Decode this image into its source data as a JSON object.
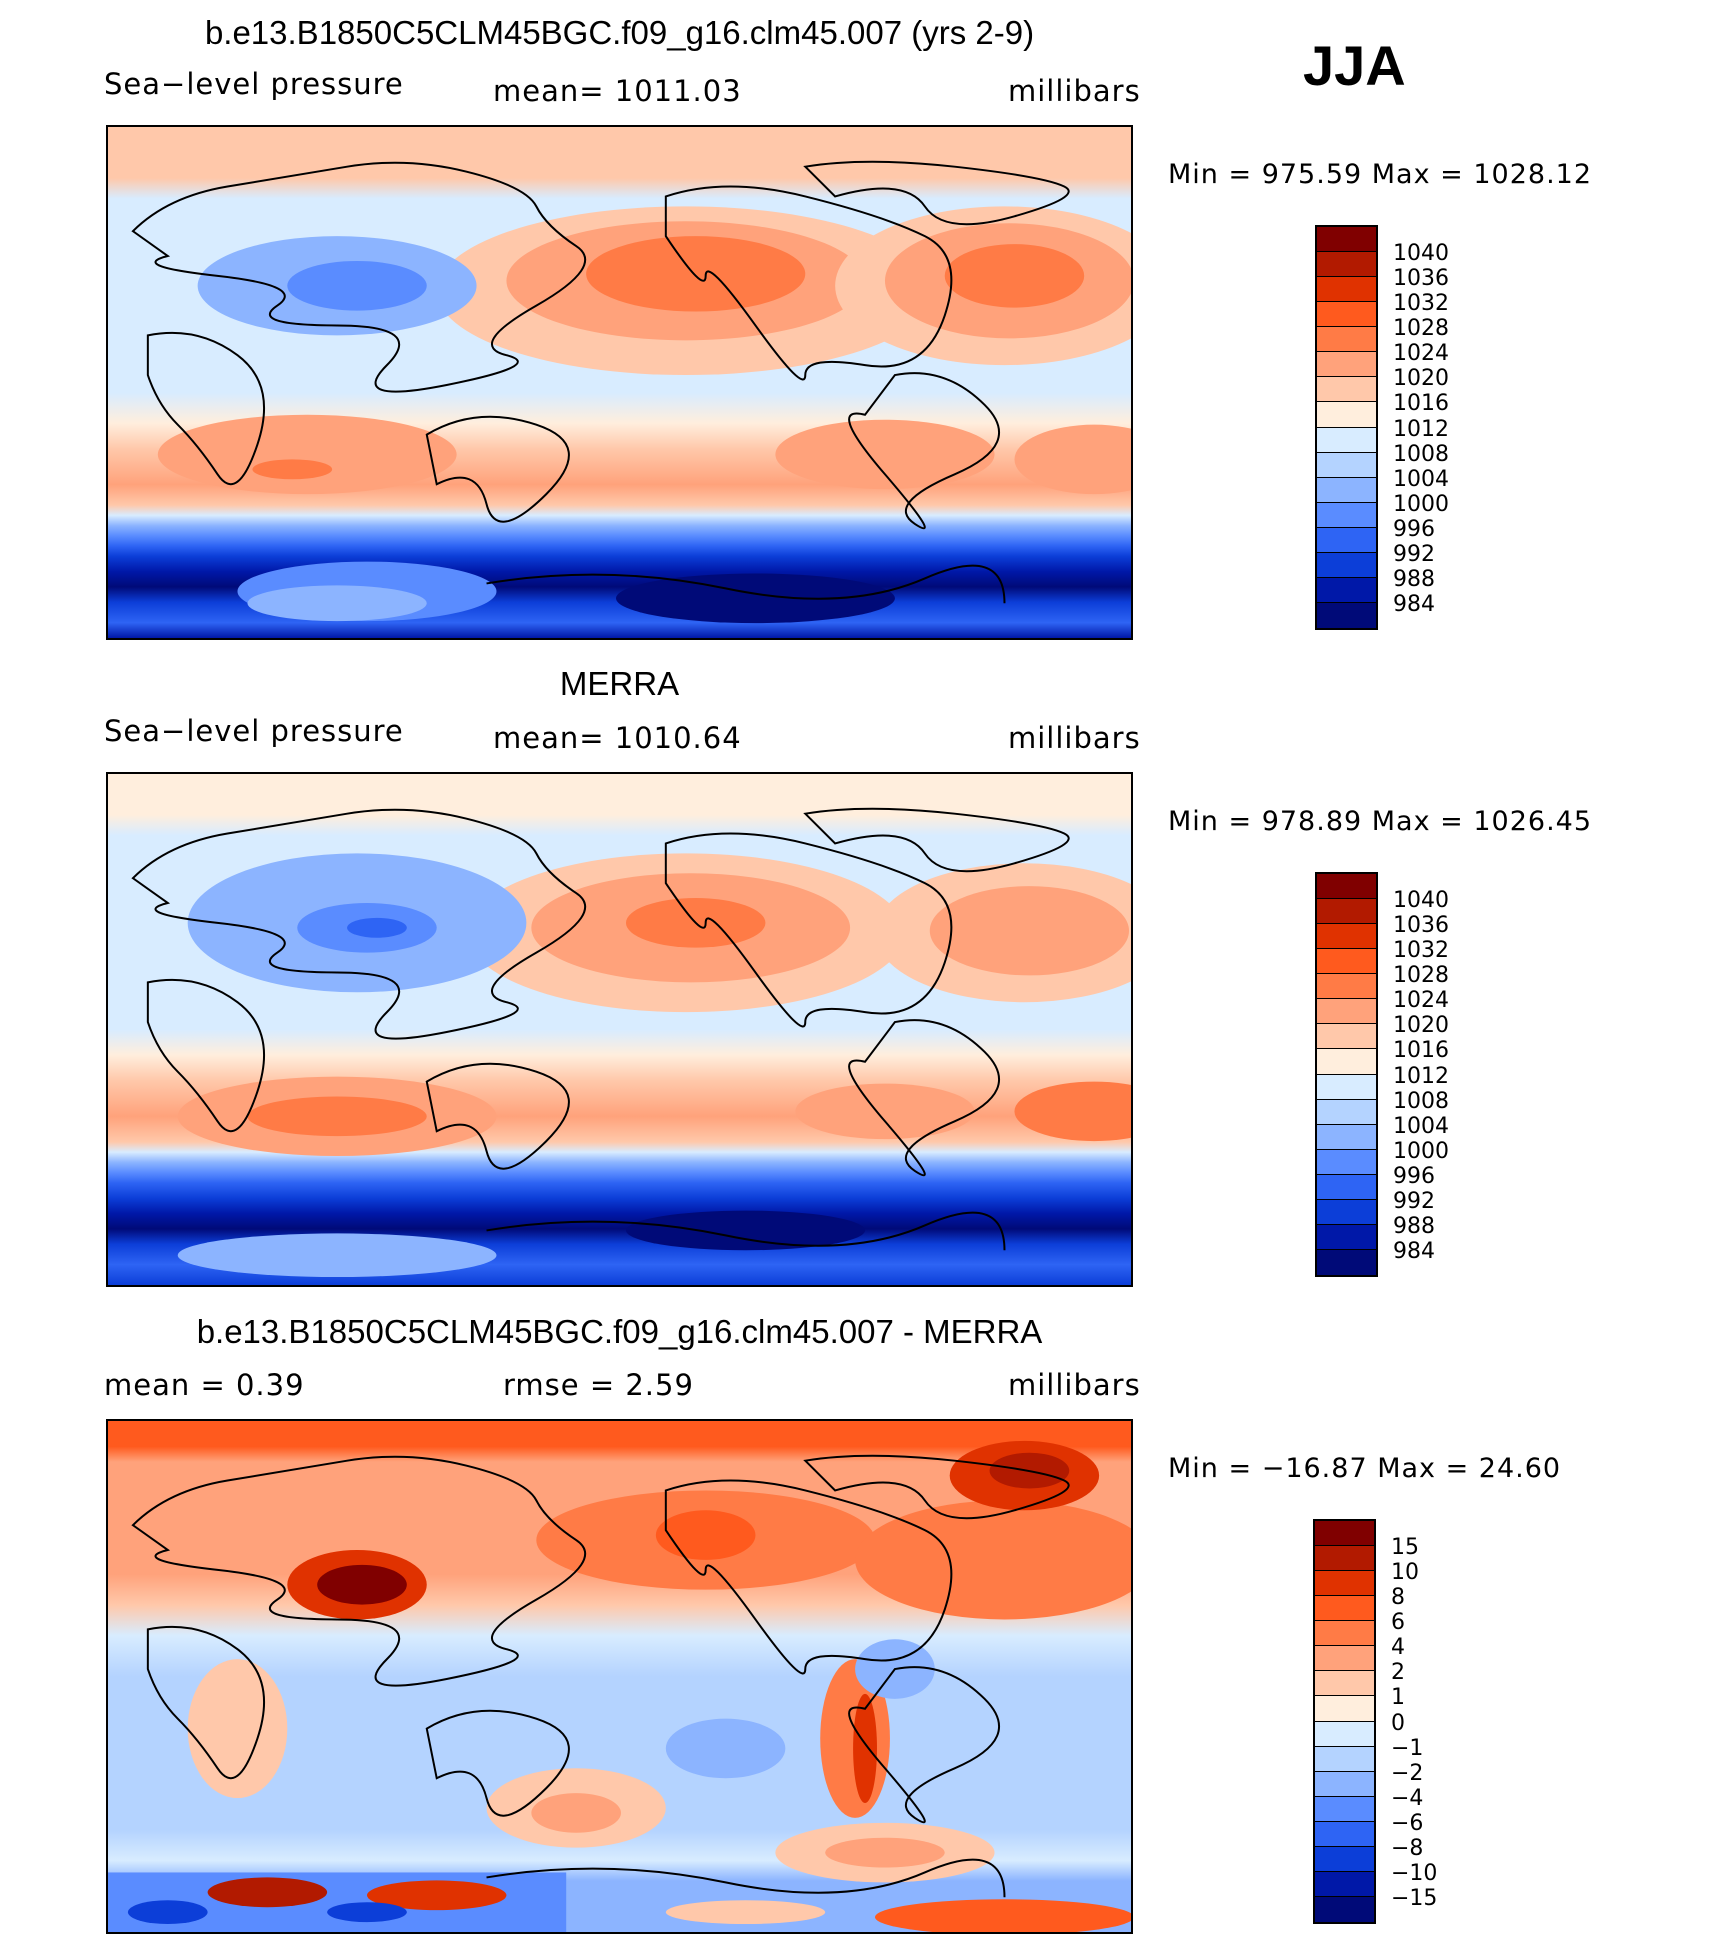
{
  "season": "JJA",
  "panels": [
    {
      "title": "b.e13.B1850C5CLM45BGC.f09_g16.clm45.007 (yrs 2-9)",
      "left": "Sea−level pressure",
      "center": "mean=  1011.03",
      "right": "millibars",
      "minmax": "Min  =  975.59  Max  =  1028.12"
    },
    {
      "title": "MERRA",
      "left": "Sea−level pressure",
      "center": "mean=  1010.64",
      "right": "millibars",
      "minmax": "Min  =  978.89  Max  =  1026.45"
    },
    {
      "title": "b.e13.B1850C5CLM45BGC.f09_g16.clm45.007 - MERRA",
      "left": "mean  =      0.39",
      "center": "rmse  =      2.59",
      "right": "millibars",
      "minmax": "Min  =  −16.87  Max  =    24.60"
    }
  ],
  "colorbars": [
    {
      "labels": [
        "1040",
        "1036",
        "1032",
        "1028",
        "1024",
        "1020",
        "1016",
        "1012",
        "1008",
        "1004",
        "1000",
        "996",
        "992",
        "988",
        "984"
      ],
      "colors": [
        "#800000",
        "#b21a00",
        "#e03200",
        "#ff5a1e",
        "#ff7b46",
        "#ffa27b",
        "#ffc8aa",
        "#ffeedd",
        "#d8ecff",
        "#b4d3ff",
        "#8cb4ff",
        "#5a8cff",
        "#2e64f4",
        "#0c3ed8",
        "#0018a8",
        "#000a78"
      ]
    },
    {
      "labels": [
        "1040",
        "1036",
        "1032",
        "1028",
        "1024",
        "1020",
        "1016",
        "1012",
        "1008",
        "1004",
        "1000",
        "996",
        "992",
        "988",
        "984"
      ],
      "colors": [
        "#800000",
        "#b21a00",
        "#e03200",
        "#ff5a1e",
        "#ff7b46",
        "#ffa27b",
        "#ffc8aa",
        "#ffeedd",
        "#d8ecff",
        "#b4d3ff",
        "#8cb4ff",
        "#5a8cff",
        "#2e64f4",
        "#0c3ed8",
        "#0018a8",
        "#000a78"
      ]
    },
    {
      "labels": [
        "15",
        "10",
        "8",
        "6",
        "4",
        "2",
        "1",
        "0",
        "−1",
        "−2",
        "−4",
        "−6",
        "−8",
        "−10",
        "−15"
      ],
      "colors": [
        "#800000",
        "#b21a00",
        "#e03200",
        "#ff5a1e",
        "#ff7b46",
        "#ffa27b",
        "#ffc8aa",
        "#ffeedd",
        "#d8ecff",
        "#b4d3ff",
        "#8cb4ff",
        "#5a8cff",
        "#2e64f4",
        "#0c3ed8",
        "#0018a8",
        "#000a78"
      ]
    }
  ]
}
